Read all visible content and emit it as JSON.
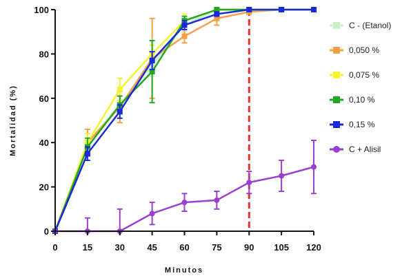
{
  "chart_data": {
    "type": "line",
    "xlabel": "Minutos",
    "ylabel": "Mortalidad (%)",
    "x": [
      0,
      15,
      30,
      45,
      60,
      75,
      90,
      105,
      120
    ],
    "xlim": [
      0,
      120
    ],
    "ylim": [
      0,
      100
    ],
    "xticks": [
      0,
      15,
      30,
      45,
      60,
      75,
      90,
      105,
      120
    ],
    "yticks": [
      0,
      20,
      40,
      60,
      80,
      100
    ],
    "reference_line": {
      "x": 90,
      "color": "#e8312b",
      "style": "dashed"
    },
    "legend_position": "right",
    "series": [
      {
        "name": "C - (Etanol)",
        "color": "#c9f0c9",
        "marker": "square",
        "values": [
          0,
          40,
          57,
          75,
          93,
          100,
          100,
          100,
          100
        ],
        "errors": [
          0,
          4,
          4,
          5,
          3,
          0,
          0,
          0,
          0
        ]
      },
      {
        "name": "0,050 %",
        "color": "#f4a04a",
        "marker": "square",
        "values": [
          0,
          40,
          56,
          78,
          88,
          96,
          99,
          100,
          100
        ],
        "errors": [
          0,
          6,
          7,
          18,
          3,
          3,
          1,
          0,
          0
        ]
      },
      {
        "name": "0,075 %",
        "color": "#f5f230",
        "marker": "square",
        "values": [
          0,
          40,
          64,
          80,
          95,
          100,
          100,
          100,
          100
        ],
        "errors": [
          0,
          4,
          5,
          4,
          3,
          0,
          0,
          0,
          0
        ]
      },
      {
        "name": "0,10 %",
        "color": "#22a820",
        "marker": "square",
        "values": [
          0,
          38,
          57,
          72,
          95,
          100,
          100,
          100,
          100
        ],
        "errors": [
          0,
          4,
          4,
          14,
          2,
          0,
          0,
          0,
          0
        ]
      },
      {
        "name": "0,15 %",
        "color": "#1a2ad6",
        "marker": "square",
        "values": [
          0,
          35,
          54,
          77,
          93,
          98,
          100,
          100,
          100
        ],
        "errors": [
          0,
          3,
          3,
          4,
          2,
          1,
          0,
          0,
          0
        ]
      },
      {
        "name": "C + Alisil",
        "color": "#9b3fd0",
        "marker": "circle",
        "values": [
          0,
          0,
          0,
          8,
          13,
          14,
          22,
          25,
          29
        ],
        "errors": [
          0,
          6,
          10,
          5,
          4,
          4,
          5,
          7,
          12
        ]
      }
    ]
  }
}
